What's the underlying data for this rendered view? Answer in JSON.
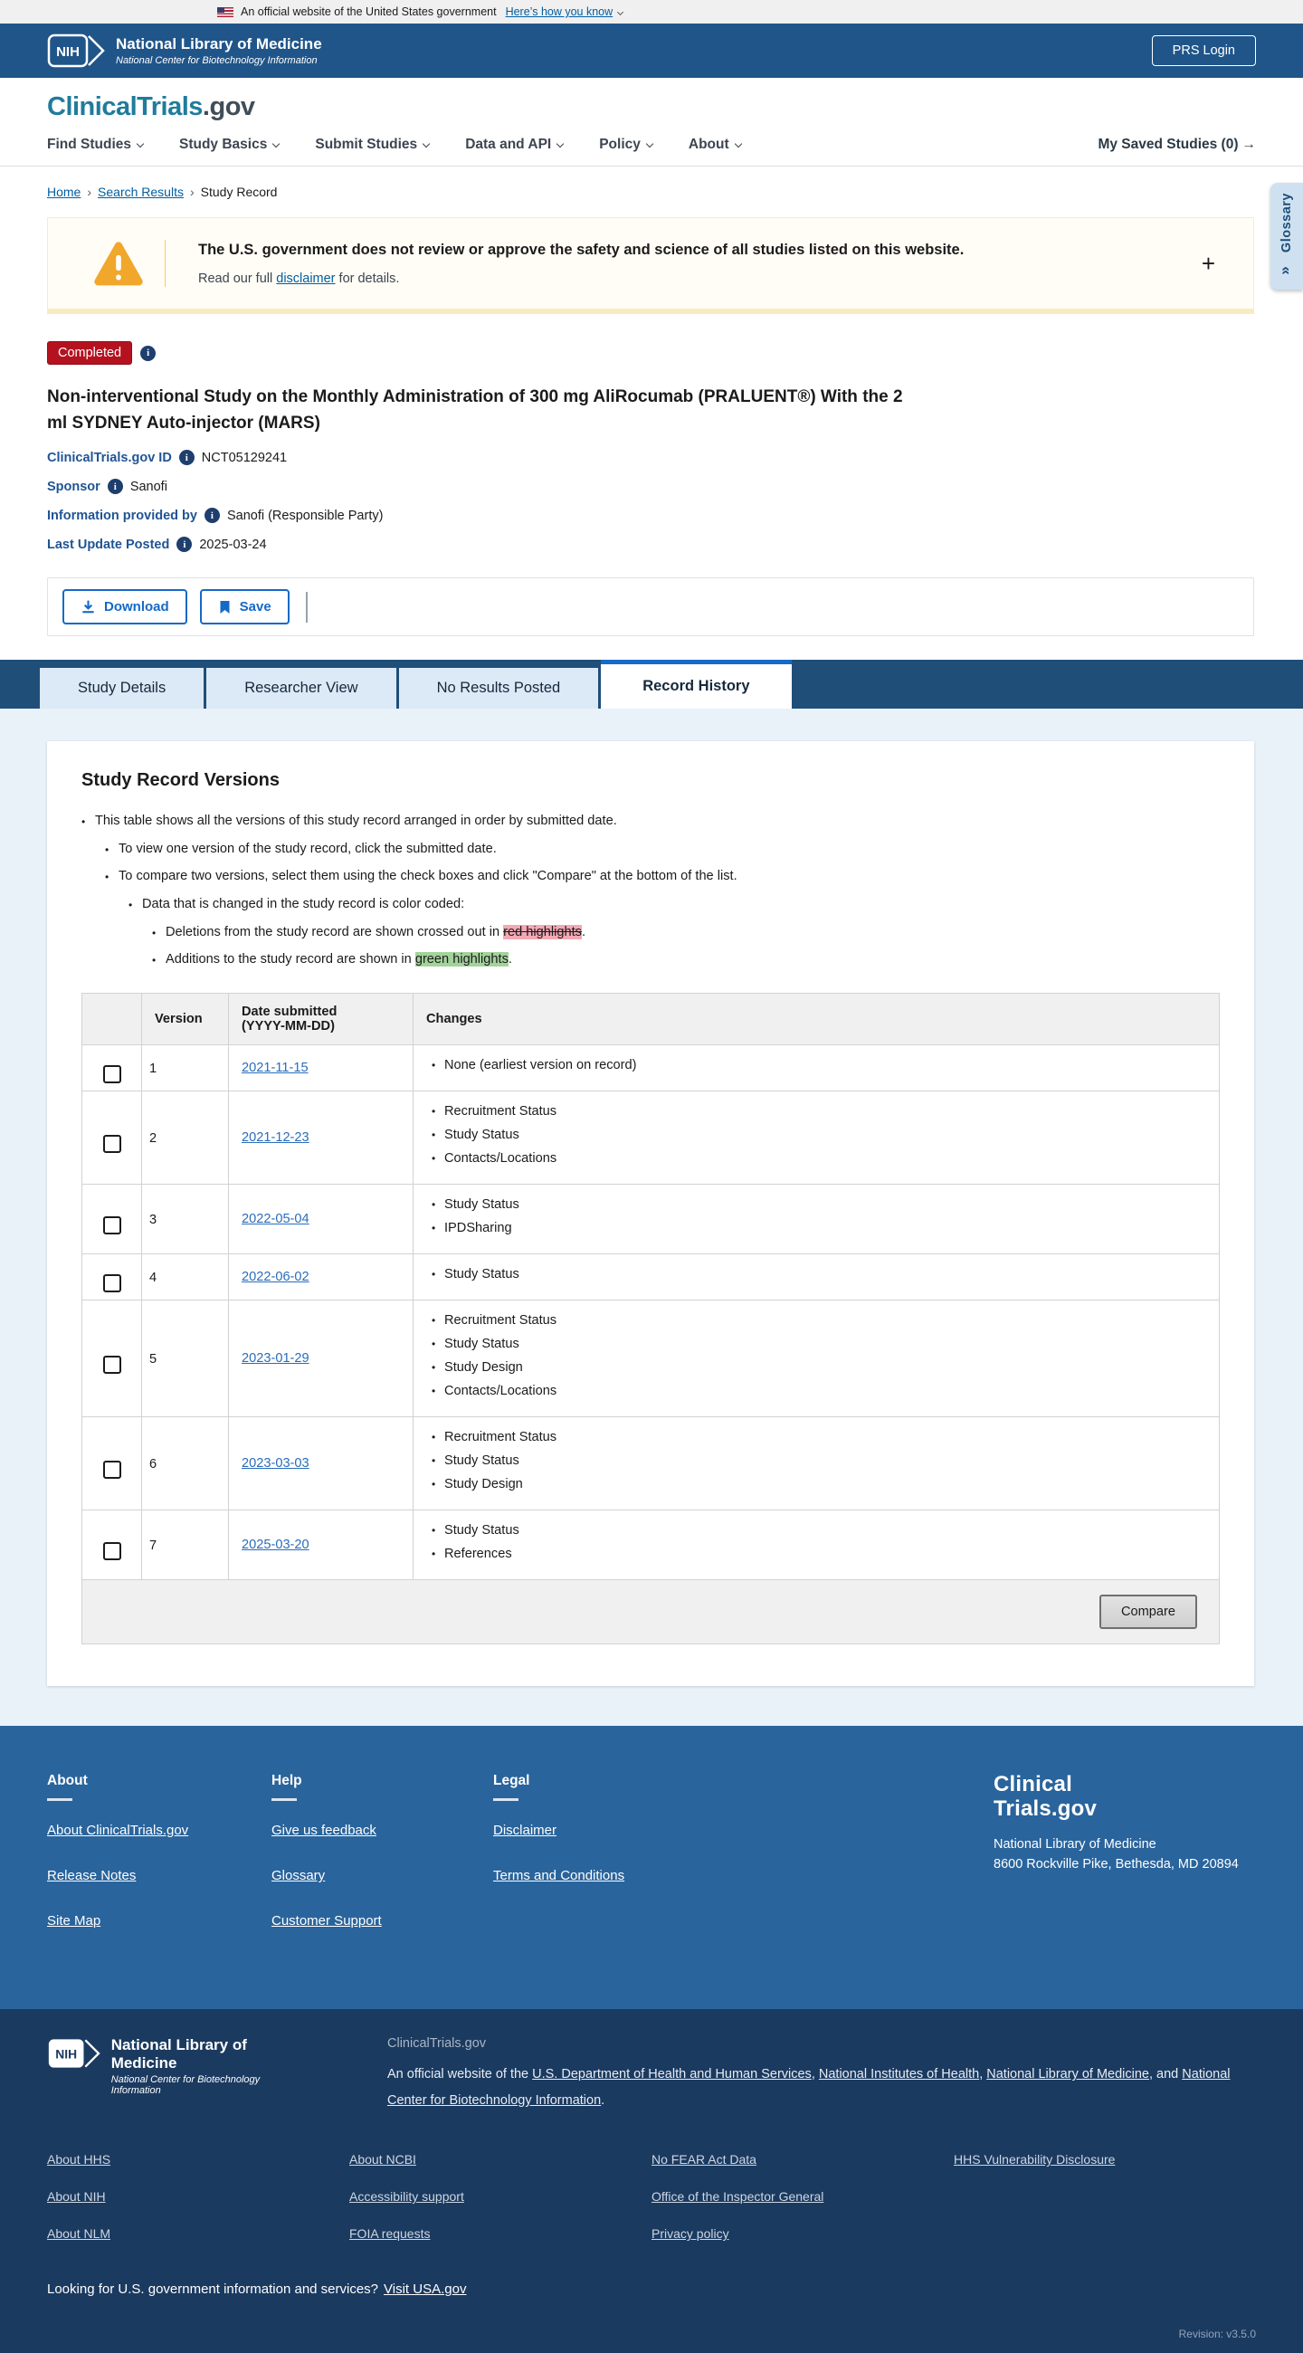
{
  "colors": {
    "header_blue": "#20558a",
    "tab_navy": "#1f4e79",
    "accent_blue": "#1569c7",
    "link_blue": "#005ea2",
    "badge_red": "#b5121f",
    "warning_amber": "#f0a72b",
    "red_highlight": "#f3a8b4",
    "green_highlight": "#a3d39b",
    "footer_mid_blue": "#2a649c",
    "footer_navy": "#1b3a60",
    "section_bg": "#e9f1f9"
  },
  "banner": {
    "text": "An official website of the United States government",
    "link": "Here’s how you know"
  },
  "header": {
    "logo_acronym": "NIH",
    "logo_title": "National Library of Medicine",
    "logo_subtitle": "National Center for Biotechnology Information",
    "prs_login": "PRS Login"
  },
  "site": {
    "logo_primary": "ClinicalTrials",
    "logo_suffix": ".gov",
    "nav": [
      "Find Studies",
      "Study Basics",
      "Submit Studies",
      "Data and API",
      "Policy",
      "About"
    ],
    "saved": "My Saved Studies (0)",
    "saved_arrow": "→"
  },
  "breadcrumb": [
    "Home",
    "Search Results",
    "Study Record"
  ],
  "glossary_tab": {
    "label": "Glossary",
    "collapse_icon": "«"
  },
  "warning": {
    "heading": "The U.S. government does not review or approve the safety and science of all studies listed on this website.",
    "body": [
      {
        "text": "Read our full "
      },
      {
        "link": "disclaimer"
      },
      {
        "text": " for details."
      }
    ],
    "expand_icon": "+"
  },
  "study": {
    "status": "Completed",
    "title": "Non-interventional Study on the Monthly Administration of 300 mg AliRocumab (PRALUENT®) With the 2 ml SYDNEY Auto-injector (MARS)",
    "meta": [
      {
        "label": "ClinicalTrials.gov ID",
        "value": "NCT05129241"
      },
      {
        "label": "Sponsor",
        "value": "Sanofi"
      },
      {
        "label": "Information provided by",
        "value": "Sanofi (Responsible Party)"
      },
      {
        "label": "Last Update Posted",
        "value": "2025-03-24"
      }
    ]
  },
  "toolbar": {
    "download": "Download",
    "save": "Save"
  },
  "tabs": [
    {
      "label": "Study Details",
      "active": false
    },
    {
      "label": "Researcher View",
      "active": false
    },
    {
      "label": "No Results Posted",
      "active": false
    },
    {
      "label": "Record History",
      "active": true
    }
  ],
  "panel": {
    "heading": "Study Record Versions",
    "bullets": {
      "intro": "This table shows all the versions of this study record arranged in order by submitted date.",
      "view": "To view one version of the study record, click the submitted date.",
      "compare": "To compare two versions, select them using the check boxes and click \"Compare\" at the bottom of the list.",
      "color_coded": "Data that is changed in the study record is color coded:",
      "deletions": [
        {
          "text": "Deletions from the study record are shown crossed out in "
        },
        {
          "mark": "red",
          "text": "red highlights"
        },
        {
          "text": "."
        }
      ],
      "additions": [
        {
          "text": "Additions to the study record are shown in "
        },
        {
          "mark": "green",
          "text": "green highlights"
        },
        {
          "text": "."
        }
      ]
    }
  },
  "table": {
    "headers": {
      "version": "Version",
      "date_line1": "Date submitted",
      "date_line2": "(YYYY-MM-DD)",
      "changes": "Changes"
    },
    "rows": [
      {
        "version": "1",
        "date": "2021-11-15",
        "changes": [
          "None (earliest version on record)"
        ]
      },
      {
        "version": "2",
        "date": "2021-12-23",
        "changes": [
          "Recruitment Status",
          "Study Status",
          "Contacts/Locations"
        ]
      },
      {
        "version": "3",
        "date": "2022-05-04",
        "changes": [
          "Study Status",
          "IPDSharing"
        ]
      },
      {
        "version": "4",
        "date": "2022-06-02",
        "changes": [
          "Study Status"
        ]
      },
      {
        "version": "5",
        "date": "2023-01-29",
        "changes": [
          "Recruitment Status",
          "Study Status",
          "Study Design",
          "Contacts/Locations"
        ]
      },
      {
        "version": "6",
        "date": "2023-03-03",
        "changes": [
          "Recruitment Status",
          "Study Status",
          "Study Design"
        ]
      },
      {
        "version": "7",
        "date": "2025-03-20",
        "changes": [
          "Study Status",
          "References"
        ]
      }
    ],
    "compare_label": "Compare"
  },
  "footer_mid": {
    "columns": [
      {
        "title": "About",
        "links": [
          "About ClinicalTrials.gov",
          "Release Notes",
          "Site Map"
        ]
      },
      {
        "title": "Help",
        "links": [
          "Give us feedback",
          "Glossary",
          "Customer Support"
        ]
      },
      {
        "title": "Legal",
        "links": [
          "Disclaimer",
          "Terms and Conditions"
        ]
      }
    ],
    "logo_line1": "Clinical",
    "logo_line2": "Trials.gov",
    "org": "National Library of Medicine",
    "address": "8600 Rockville Pike, Bethesda, MD 20894"
  },
  "footer_bottom": {
    "logo_acronym": "NIH",
    "logo_title": "National Library of Medicine",
    "logo_subtitle": "National Center for Biotechnology Information",
    "brand": "ClinicalTrials.gov",
    "official": [
      {
        "text": "An official website of the "
      },
      {
        "link": "U.S. Department of Health and Human Services"
      },
      {
        "text": ", "
      },
      {
        "link": "National Institutes of Health"
      },
      {
        "text": ", "
      },
      {
        "link": "National Library of Medicine"
      },
      {
        "text": ", and "
      },
      {
        "link": "National Center for Biotechnology Information"
      },
      {
        "text": "."
      }
    ],
    "link_columns": [
      [
        "About HHS",
        "About NIH",
        "About NLM"
      ],
      [
        "About NCBI",
        "Accessibility support",
        "FOIA requests"
      ],
      [
        "No FEAR Act Data",
        "Office of the Inspector General",
        "Privacy policy"
      ],
      [
        "HHS Vulnerability Disclosure"
      ]
    ],
    "looking": [
      {
        "text": "Looking for U.S. government information and services?"
      },
      {
        "link": "Visit USA.gov"
      }
    ],
    "revision": "Revision: v3.5.0"
  }
}
